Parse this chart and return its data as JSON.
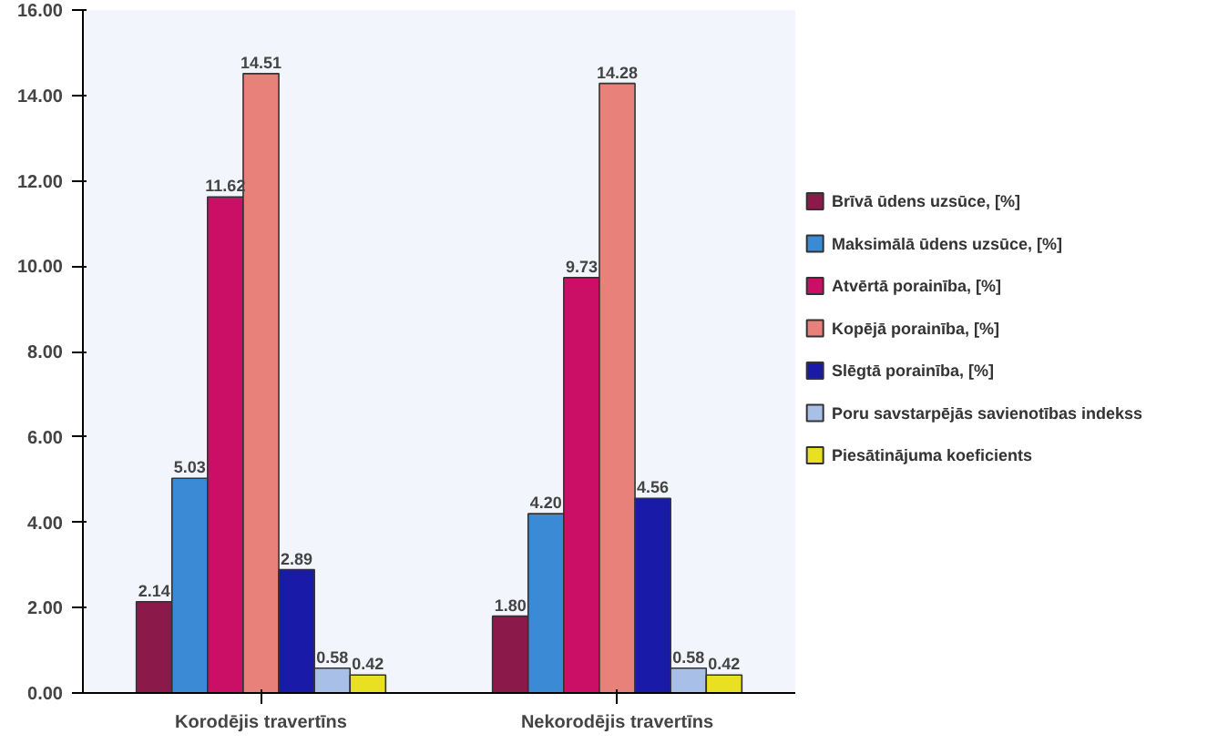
{
  "chart_data": {
    "type": "bar",
    "categories": [
      "Korodējis travertīns",
      "Nekorodējis travertīns"
    ],
    "ylim": [
      0,
      16
    ],
    "yticks": [
      {
        "value": 0,
        "label": "0.00"
      },
      {
        "value": 2,
        "label": "2.00"
      },
      {
        "value": 4,
        "label": "4.00"
      },
      {
        "value": 6,
        "label": "6.00"
      },
      {
        "value": 8,
        "label": "8.00"
      },
      {
        "value": 10,
        "label": "10.00"
      },
      {
        "value": 12,
        "label": "12.00"
      },
      {
        "value": 14,
        "label": "14.00"
      },
      {
        "value": 16,
        "label": "16.00"
      }
    ],
    "grid": false,
    "legend": "right",
    "series": [
      {
        "name": "Brīvā ūdens uzsūce, [%]",
        "color": "#8b1a4a",
        "values": [
          2.14,
          1.8
        ],
        "value_labels": [
          "2.14",
          "1.80"
        ]
      },
      {
        "name": "Maksimālā ūdens uzsūce, [%]",
        "color": "#3a8ad6",
        "values": [
          5.03,
          4.2
        ],
        "value_labels": [
          "5.03",
          "4.20"
        ]
      },
      {
        "name": "Atvērtā porainība, [%]",
        "color": "#cc0f66",
        "values": [
          11.62,
          9.73
        ],
        "value_labels": [
          "11.62",
          "9.73"
        ]
      },
      {
        "name": "Kopējā porainība, [%]",
        "color": "#e8817a",
        "values": [
          14.51,
          14.28
        ],
        "value_labels": [
          "14.51",
          "14.28"
        ]
      },
      {
        "name": "Slēgtā porainība, [%]",
        "color": "#1a1aa8",
        "values": [
          2.89,
          4.56
        ],
        "value_labels": [
          "2.89",
          "4.56"
        ]
      },
      {
        "name": "Poru savstarpējās savienotības indekss",
        "color": "#a8c0e8",
        "values": [
          0.58,
          0.58
        ],
        "value_labels": [
          "0.58",
          "0.58"
        ]
      },
      {
        "name": "Piesātinājuma koeficients",
        "color": "#e8e020",
        "values": [
          0.42,
          0.42
        ],
        "value_labels": [
          "0.42",
          "0.42"
        ]
      }
    ]
  }
}
